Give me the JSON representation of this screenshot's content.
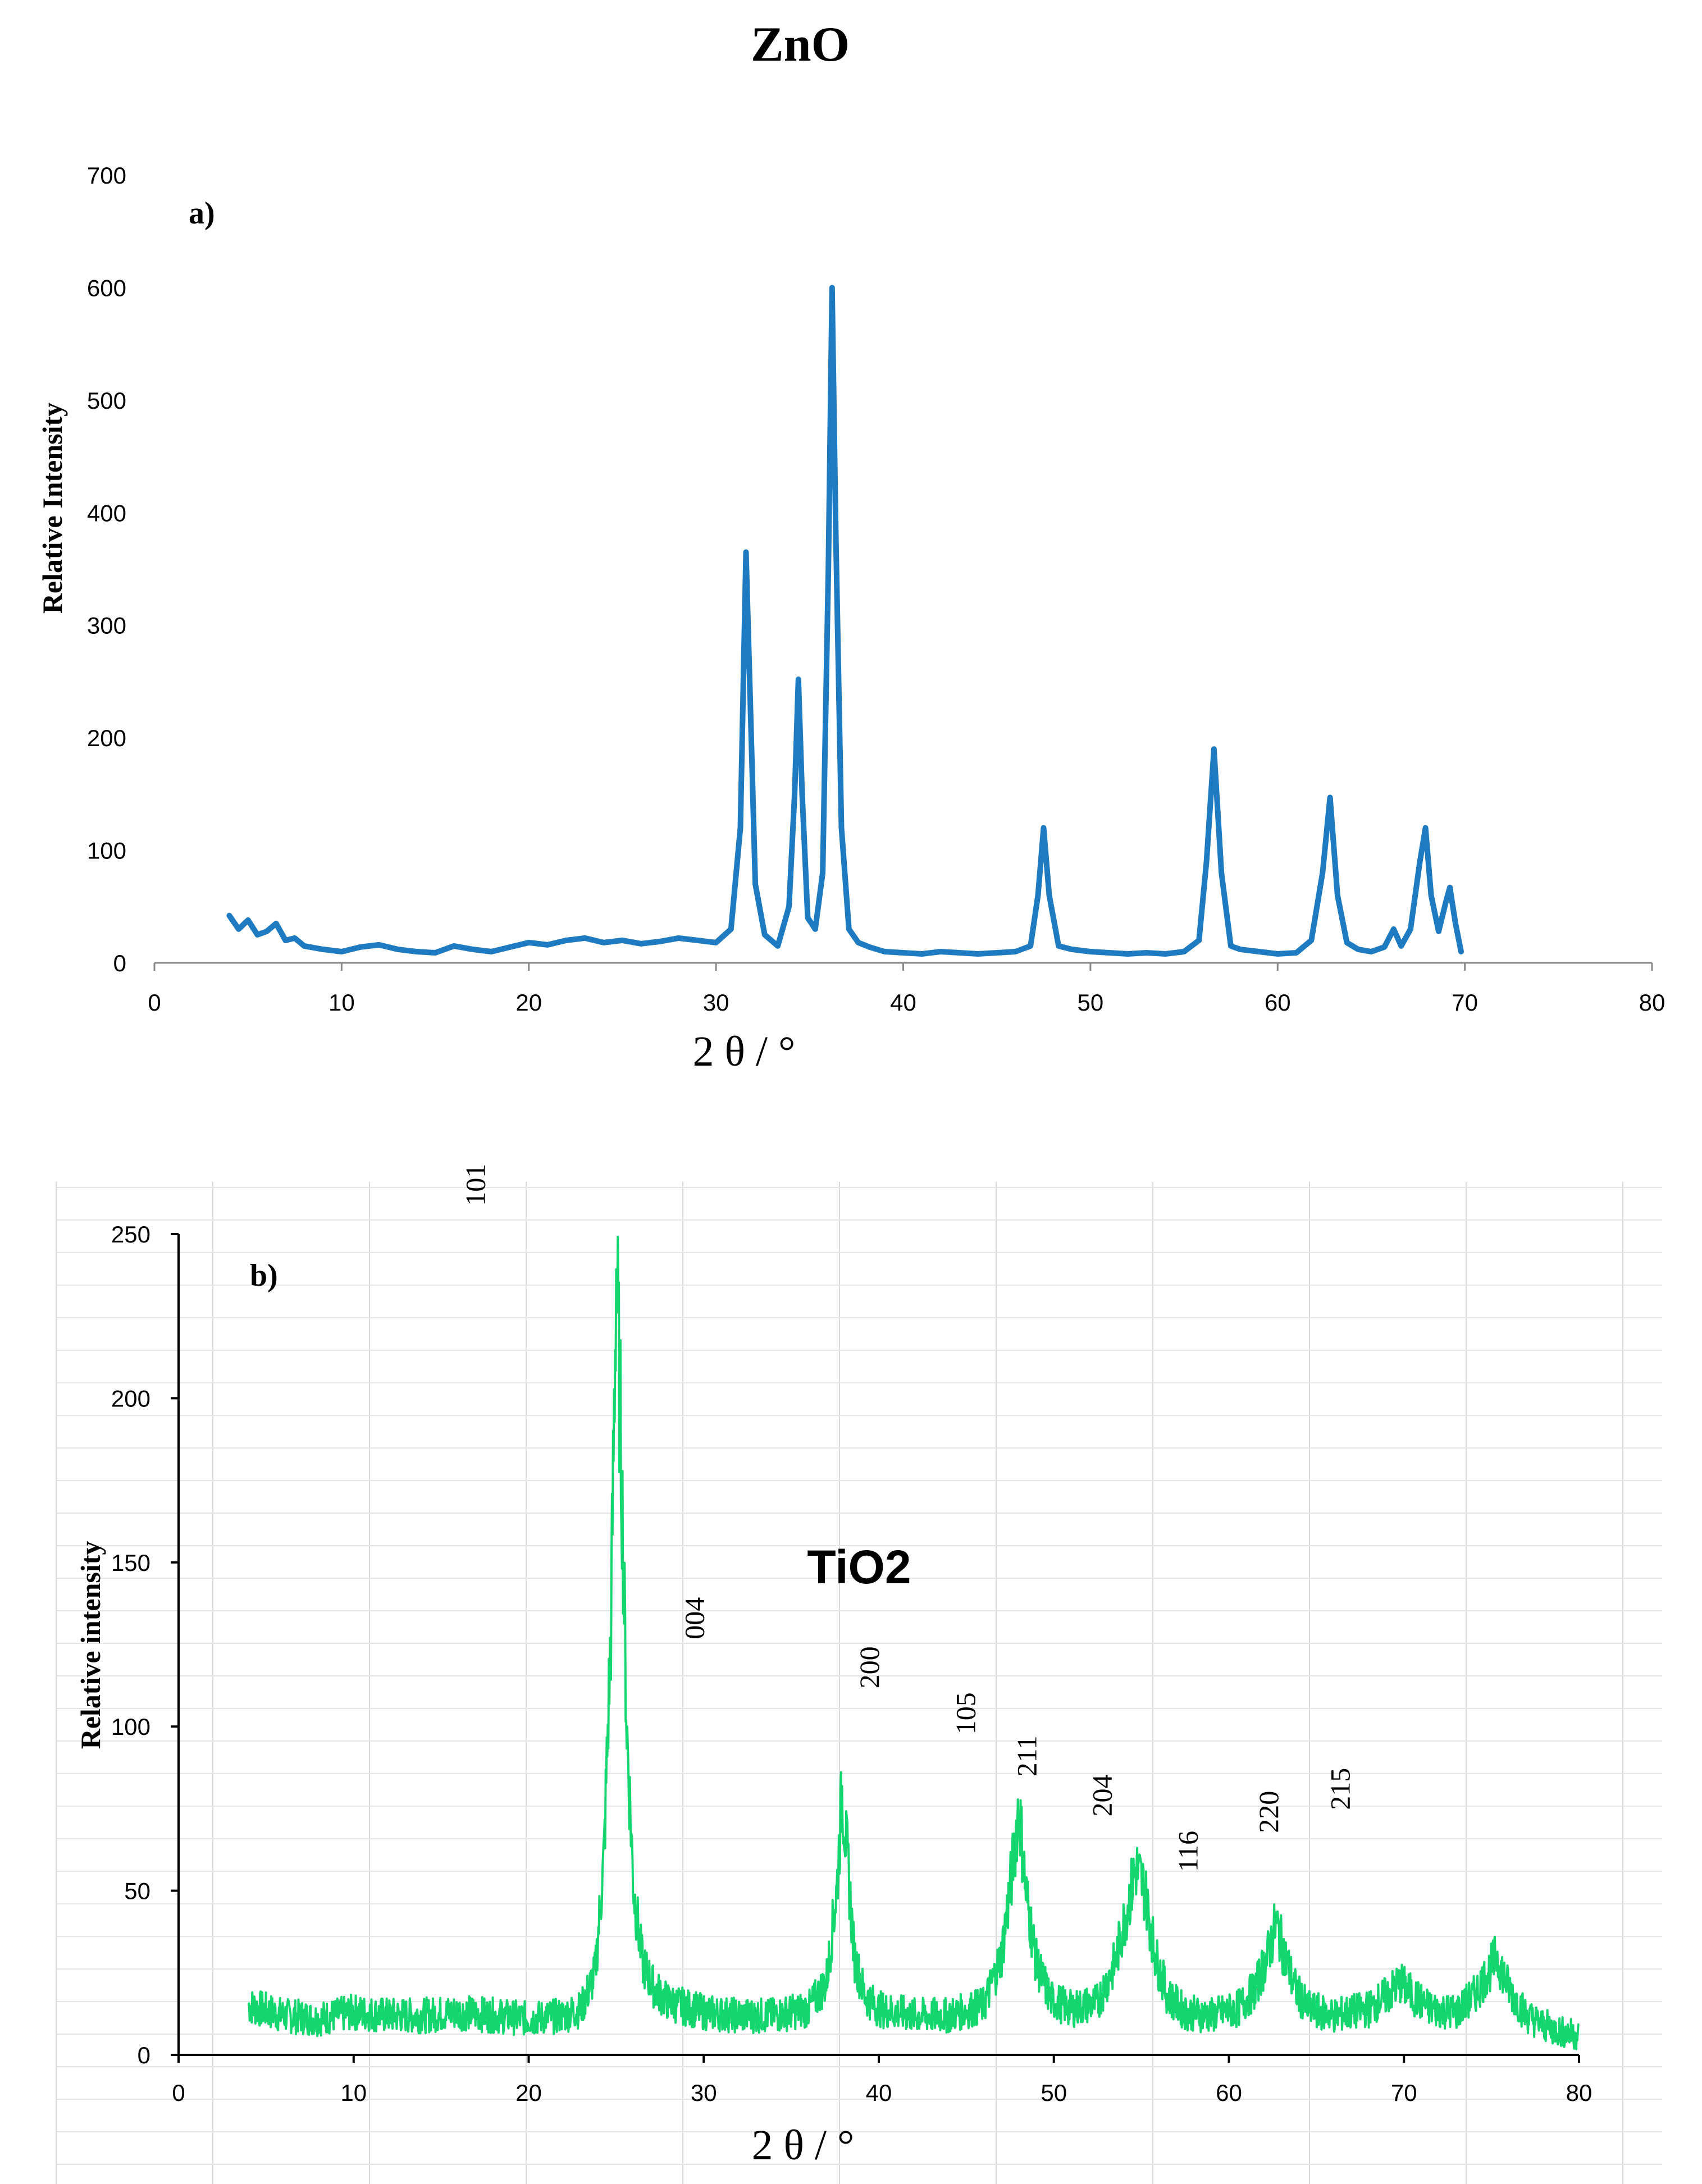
{
  "figure_title": "ZnO",
  "chart_data": [
    {
      "type": "line",
      "panel_label": "a)",
      "title": "ZnO",
      "xlabel": "2 θ / °",
      "ylabel": "Relative Intensity",
      "xlim": [
        0,
        80
      ],
      "ylim": [
        0,
        700
      ],
      "xticks": [
        0,
        10,
        20,
        30,
        40,
        50,
        60,
        70,
        80
      ],
      "yticks": [
        0,
        100,
        200,
        300,
        400,
        500,
        600,
        700
      ],
      "color": "#1f7bc1",
      "grid": false,
      "series": [
        {
          "name": "ZnO",
          "x": [
            4,
            4.5,
            5,
            5.5,
            6,
            6.5,
            7,
            7.5,
            8,
            9,
            10,
            11,
            12,
            13,
            14,
            15,
            16,
            17,
            18,
            19,
            20,
            21,
            22,
            23,
            24,
            25,
            26,
            27,
            28,
            29,
            30,
            30.8,
            31.3,
            31.6,
            31.8,
            32.1,
            32.6,
            33.3,
            33.9,
            34.2,
            34.4,
            34.6,
            34.9,
            35.3,
            35.7,
            36.0,
            36.2,
            36.4,
            36.7,
            37.1,
            37.6,
            38.2,
            39,
            40,
            41,
            42,
            43,
            44,
            45,
            46,
            46.8,
            47.2,
            47.5,
            47.8,
            48.3,
            49,
            50,
            51,
            52,
            53,
            54,
            55,
            55.8,
            56.2,
            56.6,
            57.0,
            57.5,
            58,
            59,
            60,
            61,
            61.8,
            62.4,
            62.8,
            63.2,
            63.7,
            64.3,
            65,
            65.7,
            66.2,
            66.6,
            67.1,
            67.6,
            67.9,
            68.2,
            68.6,
            69.0,
            69.2,
            69.5,
            69.8
          ],
          "y": [
            42,
            30,
            38,
            25,
            28,
            35,
            20,
            22,
            15,
            12,
            10,
            14,
            16,
            12,
            10,
            9,
            15,
            12,
            10,
            14,
            18,
            16,
            20,
            22,
            18,
            20,
            17,
            19,
            22,
            20,
            18,
            30,
            120,
            365,
            250,
            70,
            25,
            15,
            50,
            150,
            252,
            150,
            40,
            30,
            80,
            350,
            600,
            380,
            120,
            30,
            18,
            14,
            10,
            9,
            8,
            10,
            9,
            8,
            9,
            10,
            15,
            60,
            120,
            60,
            15,
            12,
            10,
            9,
            8,
            9,
            8,
            10,
            20,
            90,
            190,
            80,
            15,
            12,
            10,
            8,
            9,
            20,
            80,
            147,
            60,
            18,
            12,
            10,
            14,
            30,
            15,
            30,
            90,
            120,
            60,
            28,
            55,
            67,
            35,
            10
          ]
        }
      ]
    },
    {
      "type": "line",
      "panel_label": "b)",
      "title": "TiO2",
      "xlabel": "2 θ / °",
      "ylabel": "Relative intensity",
      "xlim": [
        0,
        80
      ],
      "ylim": [
        0,
        250
      ],
      "xticks": [
        0,
        10,
        20,
        30,
        40,
        50,
        60,
        70,
        80
      ],
      "yticks": [
        0,
        50,
        100,
        150,
        200,
        250
      ],
      "color": "#14d66f",
      "grid": true,
      "peak_labels": [
        {
          "label": "101",
          "x": 17.5,
          "y": 265
        },
        {
          "label": "004",
          "x": 30.0,
          "y": 133
        },
        {
          "label": "200",
          "x": 40.0,
          "y": 118
        },
        {
          "label": "105",
          "x": 45.5,
          "y": 104
        },
        {
          "label": "211",
          "x": 49.0,
          "y": 91
        },
        {
          "label": "204",
          "x": 53.3,
          "y": 79
        },
        {
          "label": "116",
          "x": 58.2,
          "y": 62
        },
        {
          "label": "220",
          "x": 62.8,
          "y": 74
        },
        {
          "label": "215",
          "x": 66.9,
          "y": 81
        }
      ],
      "series": [
        {
          "name": "TiO2",
          "x": [
            4,
            6,
            8,
            10,
            12,
            14,
            16,
            18,
            20,
            22,
            23,
            23.8,
            24.3,
            24.7,
            25.0,
            25.3,
            25.6,
            26.0,
            26.5,
            27.2,
            28,
            30,
            32,
            34,
            36,
            37,
            37.6,
            37.9,
            38.2,
            38.6,
            39.2,
            40,
            42,
            44,
            46,
            47,
            47.6,
            48.0,
            48.4,
            49,
            49.8,
            51,
            52.5,
            53.5,
            54.2,
            54.7,
            55.2,
            55.8,
            56.5,
            57.5,
            59,
            60.5,
            61.5,
            62.2,
            62.7,
            63.2,
            63.8,
            64.5,
            66,
            68,
            69,
            69.8,
            70.5,
            71.5,
            73,
            74,
            74.8,
            75.3,
            76,
            77,
            78,
            79,
            80
          ],
          "y": [
            15,
            12,
            11,
            13,
            12,
            12,
            13,
            12,
            11,
            12,
            14,
            25,
            60,
            130,
            240,
            180,
            100,
            50,
            28,
            20,
            16,
            13,
            12,
            12,
            14,
            22,
            50,
            80,
            60,
            30,
            18,
            14,
            12,
            12,
            15,
            30,
            55,
            76,
            50,
            28,
            17,
            14,
            16,
            28,
            45,
            57,
            50,
            30,
            18,
            13,
            12,
            14,
            20,
            30,
            40,
            30,
            20,
            14,
            12,
            14,
            18,
            22,
            18,
            14,
            13,
            18,
            25,
            30,
            20,
            12,
            9,
            7,
            6
          ]
        }
      ]
    }
  ]
}
